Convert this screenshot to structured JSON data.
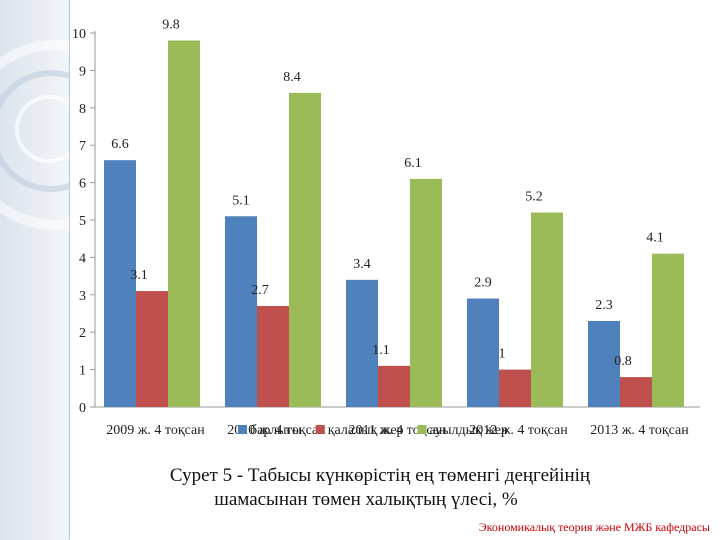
{
  "chart_data": {
    "type": "bar",
    "categories": [
      "2009 ж. 4 тоқсан",
      "2010 ж. 4 тоқсан",
      "2011 ж. 4 тоқсан",
      "2012 ж. 4 тоқсан",
      "2013 ж. 4 тоқсан"
    ],
    "series": [
      {
        "name": "барлығы",
        "values": [
          6.6,
          5.1,
          3.4,
          2.9,
          2.3
        ],
        "color": "#4f81bd"
      },
      {
        "name": "қалалық жер",
        "values": [
          3.1,
          2.7,
          1.1,
          1,
          0.8
        ],
        "color": "#c0504d"
      },
      {
        "name": "ауылдық жер",
        "values": [
          9.8,
          8.4,
          6.1,
          5.2,
          4.1
        ],
        "color": "#9bbb59"
      }
    ],
    "value_labels": [
      [
        "6.6",
        "5.1",
        "3.4",
        "2.9",
        "2.3"
      ],
      [
        "3.1",
        "2.7",
        "1.1",
        "1",
        "0.8"
      ],
      [
        "9.8",
        "8.4",
        "6.1",
        "5.2",
        "4.1"
      ]
    ],
    "ylim": [
      0,
      10
    ],
    "yticks": [
      0,
      1,
      2,
      3,
      4,
      5,
      6,
      7,
      8,
      9,
      10
    ],
    "grid": false,
    "legend_position": "bottom"
  },
  "caption": {
    "line1": "Сурет 5 - Табысы күнкөрістің ең төменгі деңгейінің",
    "line2": "шамасынан төмен халықтың үлесі, %"
  },
  "footer": "Экономикалық теория және МЖБ кафедрасы"
}
